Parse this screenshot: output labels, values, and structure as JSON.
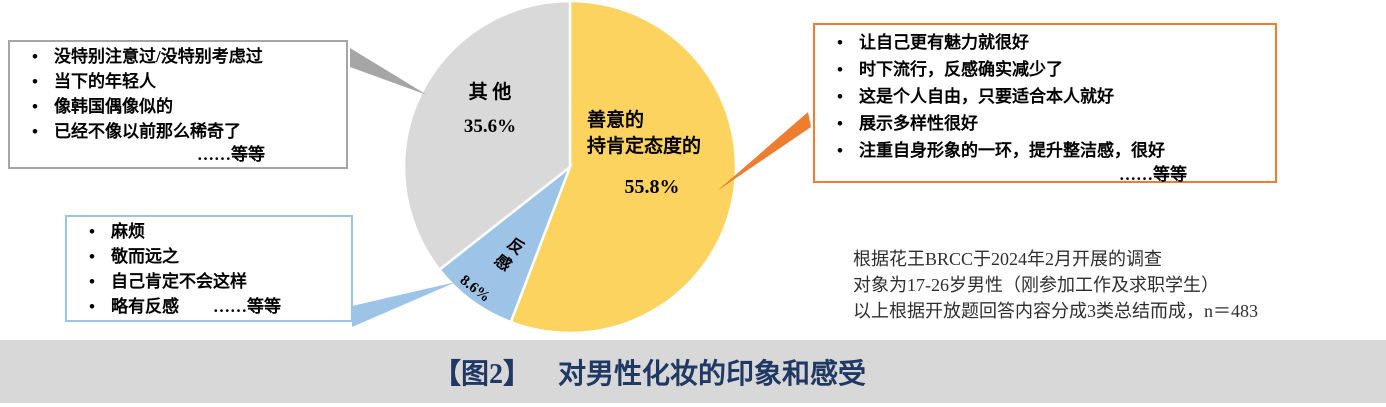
{
  "chart_data": {
    "type": "pie",
    "title": "对男性化妆的印象和感受",
    "figure_tag": "【图2】",
    "slices": [
      {
        "name": "善意的 持肯定态度的",
        "value": 55.8,
        "color": "#FBD35E"
      },
      {
        "name": "反感",
        "value": 8.6,
        "color": "#9DC3E6"
      },
      {
        "name": "其他",
        "value": 35.6,
        "color": "#D9D9D9"
      }
    ],
    "start_angle_deg": 0,
    "direction": "clockwise",
    "legend": false,
    "labels_on_slices": true
  },
  "pie_labels": {
    "other_name": "其 他",
    "other_pct": "35.6%",
    "positive_line1": "善意的",
    "positive_line2": "持肯定态度的",
    "positive_pct": "55.8%",
    "negative_name": "反感",
    "negative_pct": "8.6%"
  },
  "callouts": {
    "other_box": {
      "items": [
        "没特别注意过/没特别考虑过",
        "当下的年轻人",
        "像韩国偶像似的",
        "已经不像以前那么稀奇了"
      ],
      "etc": "……等等"
    },
    "negative_box": {
      "items": [
        "麻烦",
        "敬而远之",
        "自己肯定不会这样",
        "略有反感　　……等等"
      ]
    },
    "positive_box": {
      "items": [
        "让自己更有魅力就很好",
        "时下流行，反感确实减少了",
        "这是个人自由，只要适合本人就好",
        "展示多样性很好",
        "注重自身形象的一环，提升整洁感，很好"
      ],
      "etc": "……等等"
    }
  },
  "note": {
    "lines": [
      "根据花王BRCC于2024年2月开展的调查",
      "对象为17-26岁男性（刚参加工作及求职学生）",
      "以上根据开放题回答内容分成3类总结而成，n＝483"
    ]
  },
  "footer": {
    "figure_tag": "【图2】",
    "title": "对男性化妆的印象和感受"
  },
  "colors": {
    "positive_slice": "#FBD35E",
    "negative_slice": "#9DC3E6",
    "other_slice": "#D9D9D9",
    "orange_accent": "#ED7D31",
    "leader_gray": "#A6A6A6",
    "box_border_gray": "#A6A6A6",
    "box_border_blue": "#9DC3E6",
    "footer_bar": "#D8D8D8",
    "footer_text": "#1F3864",
    "note_text": "#2E2E2E"
  }
}
